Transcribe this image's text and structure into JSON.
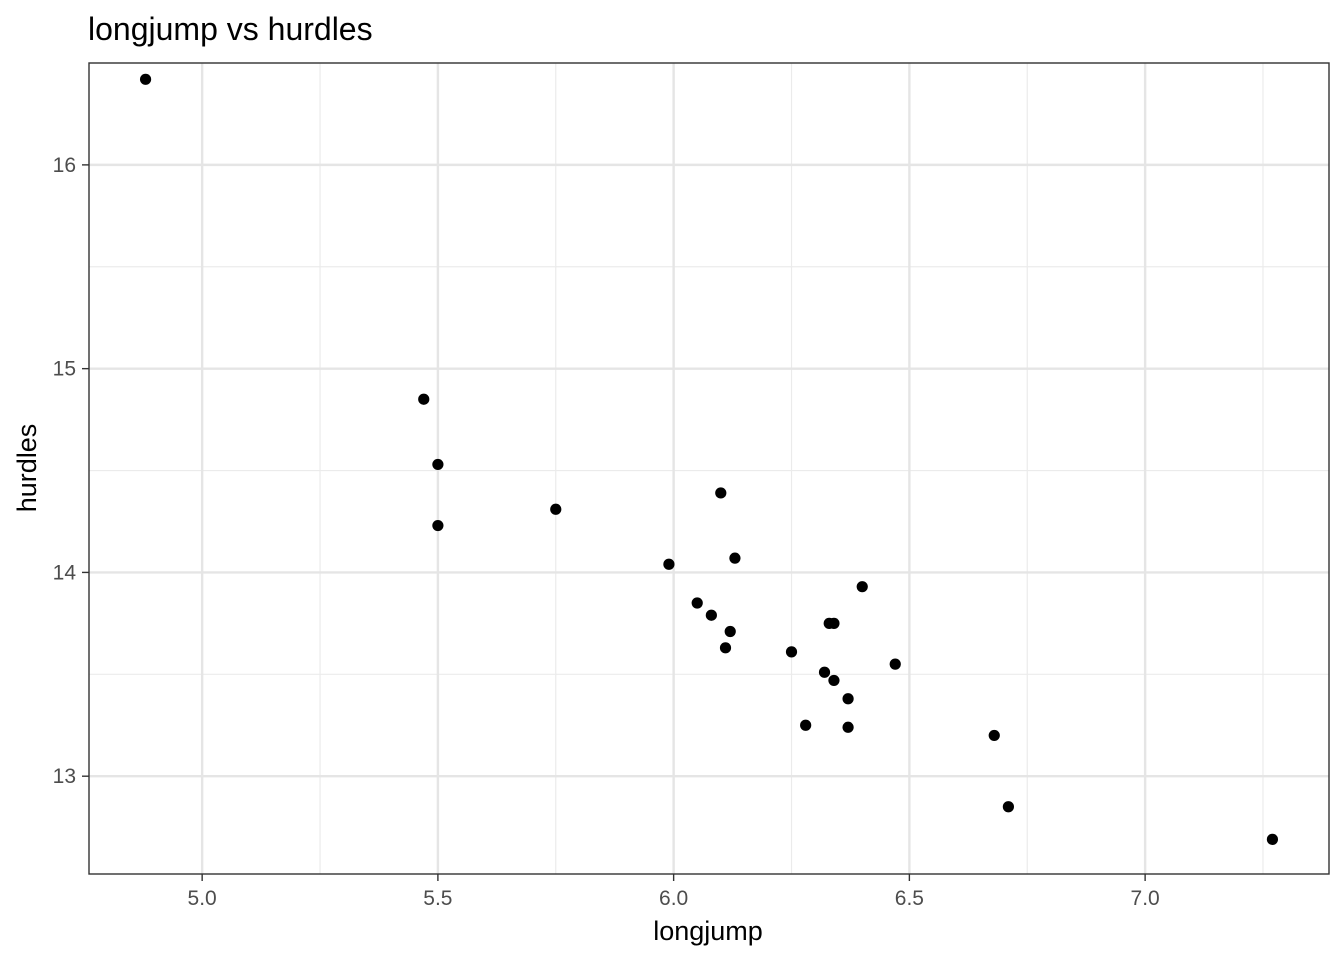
{
  "chart_data": {
    "type": "scatter",
    "title": "longjump vs hurdles",
    "xlabel": "longjump",
    "ylabel": "hurdles",
    "xlim": [
      4.76,
      7.39
    ],
    "ylim": [
      12.52,
      16.5
    ],
    "x_ticks": [
      5.0,
      5.5,
      6.0,
      6.5,
      7.0
    ],
    "x_tick_labels": [
      "5.0",
      "5.5",
      "6.0",
      "6.5",
      "7.0"
    ],
    "y_ticks": [
      13,
      14,
      15,
      16
    ],
    "y_tick_labels": [
      "13",
      "14",
      "15",
      "16"
    ],
    "grid": true,
    "legend": "none",
    "point_color": "#000000",
    "points": [
      {
        "x": 4.88,
        "y": 16.42
      },
      {
        "x": 5.47,
        "y": 14.85
      },
      {
        "x": 5.5,
        "y": 14.53
      },
      {
        "x": 5.5,
        "y": 14.23
      },
      {
        "x": 5.75,
        "y": 14.31
      },
      {
        "x": 5.99,
        "y": 14.04
      },
      {
        "x": 6.05,
        "y": 13.85
      },
      {
        "x": 6.08,
        "y": 13.79
      },
      {
        "x": 6.1,
        "y": 14.39
      },
      {
        "x": 6.11,
        "y": 13.63
      },
      {
        "x": 6.12,
        "y": 13.71
      },
      {
        "x": 6.13,
        "y": 14.07
      },
      {
        "x": 6.25,
        "y": 13.61
      },
      {
        "x": 6.28,
        "y": 13.25
      },
      {
        "x": 6.32,
        "y": 13.51
      },
      {
        "x": 6.33,
        "y": 13.75
      },
      {
        "x": 6.34,
        "y": 13.75
      },
      {
        "x": 6.34,
        "y": 13.47
      },
      {
        "x": 6.37,
        "y": 13.38
      },
      {
        "x": 6.37,
        "y": 13.24
      },
      {
        "x": 6.4,
        "y": 13.93
      },
      {
        "x": 6.47,
        "y": 13.55
      },
      {
        "x": 6.68,
        "y": 13.2
      },
      {
        "x": 6.71,
        "y": 12.85
      },
      {
        "x": 7.27,
        "y": 12.69
      }
    ]
  }
}
